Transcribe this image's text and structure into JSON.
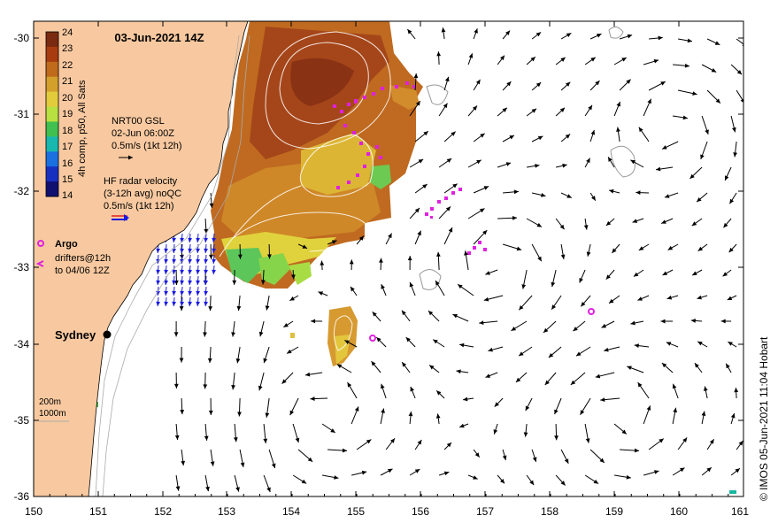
{
  "title": "03-Jun-2021 14Z",
  "colorbar": {
    "ticks": [
      "24",
      "23",
      "22",
      "21",
      "20",
      "19",
      "18",
      "17",
      "16",
      "15",
      "14"
    ],
    "label": "4h comp, p50, All Sats",
    "colors": [
      "#7a2a10",
      "#a83c10",
      "#c06a1c",
      "#d4a02c",
      "#e2cc3c",
      "#b8e040",
      "#40c050",
      "#18b8b0",
      "#1a70e0",
      "#1830c0",
      "#101070"
    ]
  },
  "legend": {
    "nrt_line1": "NRT00 GSL",
    "nrt_line2": "02-Jun 06:00Z",
    "nrt_line3": "0.5m/s (1kt 12h)",
    "hf_line1": "HF radar velocity",
    "hf_line2": "(3-12h avg) noQC",
    "hf_line3": "0.5m/s (1kt 12h)",
    "argo": "Argo",
    "drifters_line1": "drifters@12h",
    "drifters_line2": "to 04/06 12Z"
  },
  "places": {
    "sydney": "Sydney"
  },
  "contours": {
    "c200": "200m",
    "c1000": "1000m"
  },
  "axes": {
    "x_ticks": [
      "150",
      "151",
      "152",
      "153",
      "154",
      "155",
      "156",
      "157",
      "158",
      "159",
      "160",
      "161"
    ],
    "y_ticks": [
      "-30",
      "-31",
      "-32",
      "-33",
      "-34",
      "-35",
      "-36"
    ]
  },
  "credit": "© IMOS 05-Jun-2021 11:04 Hobart",
  "colors": {
    "land": "#f8c9a0",
    "arrow": "#000000",
    "hf_arrow": "#1a1ae0",
    "drifter": "#e020e0"
  }
}
